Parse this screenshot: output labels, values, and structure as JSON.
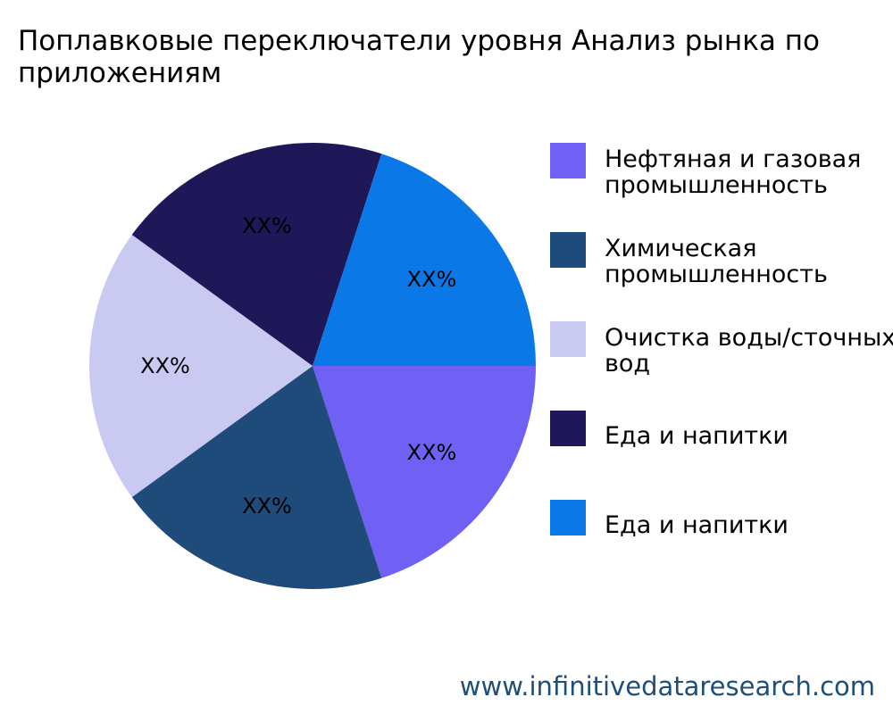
{
  "chart_data": {
    "type": "pie",
    "title": "Поплавковые переключатели уровня Анализ рынка по\nприложениям",
    "slices": [
      {
        "name": "Нефтяная и газовая\nпромышленность",
        "value": 20,
        "label": "XX%",
        "color": "#7060f4"
      },
      {
        "name": "Химическая\nпромышленность",
        "value": 20,
        "label": "XX%",
        "color": "#1f4b7b"
      },
      {
        "name": "Очистка воды/сточных\nвод",
        "value": 20,
        "label": "XX%",
        "color": "#c9c9f1"
      },
      {
        "name": "Еда и напитки",
        "value": 20,
        "label": "XX%",
        "color": "#1e1858"
      },
      {
        "name": "Еда и напитки",
        "value": 20,
        "label": "XX%",
        "color": "#0b78e8"
      }
    ],
    "legend_position": "right"
  },
  "watermark": "www.infinitivedataresearch.com"
}
